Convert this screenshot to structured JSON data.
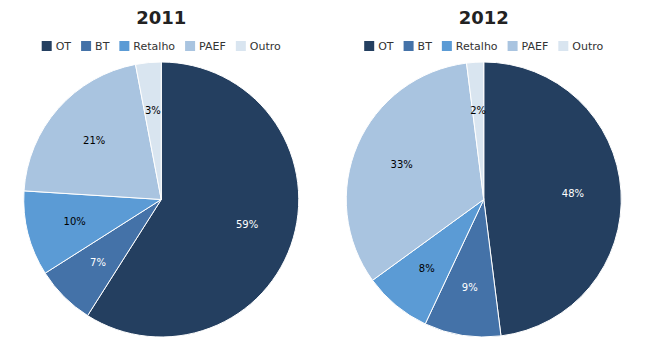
{
  "chart_data": [
    {
      "type": "pie",
      "title": "2011",
      "categories": [
        "OT",
        "BT",
        "Retalho",
        "PAEF",
        "Outro"
      ],
      "values": [
        59,
        7,
        10,
        21,
        3
      ],
      "value_labels": [
        "59%",
        "7%",
        "10%",
        "21%",
        "3%"
      ],
      "colors": [
        "#243F60",
        "#4472A8",
        "#5B9BD5",
        "#A9C4E0",
        "#D9E5F0"
      ],
      "data_labels": true,
      "legend": "top"
    },
    {
      "type": "pie",
      "title": "2012",
      "categories": [
        "OT",
        "BT",
        "Retalho",
        "PAEF",
        "Outro"
      ],
      "values": [
        48,
        9,
        8,
        33,
        2
      ],
      "value_labels": [
        "48%",
        "9%",
        "8%",
        "33%",
        "2%"
      ],
      "colors": [
        "#243F60",
        "#4472A8",
        "#5B9BD5",
        "#A9C4E0",
        "#D9E5F0"
      ],
      "data_labels": true,
      "legend": "top"
    }
  ]
}
